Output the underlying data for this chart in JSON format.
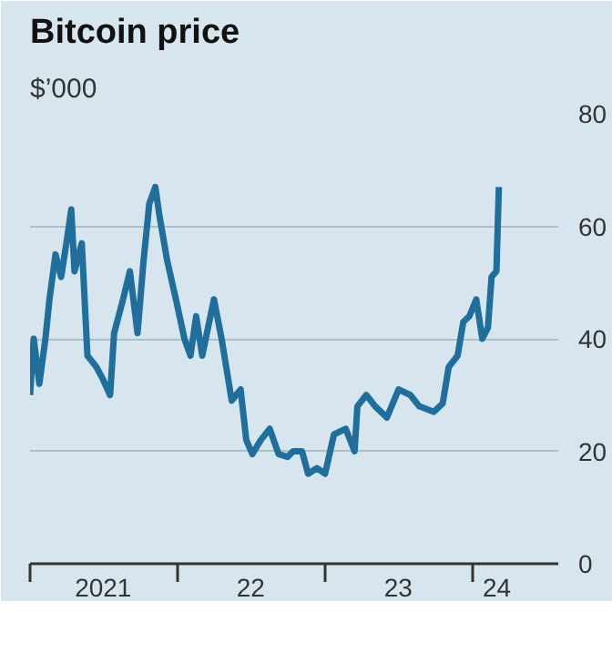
{
  "chart_data": {
    "type": "line",
    "title": "Bitcoin price",
    "subtitle": "$’000",
    "x": [
      "2021-01-01",
      "2021-01-10",
      "2021-01-24",
      "2021-02-08",
      "2021-02-18",
      "2021-03-05",
      "2021-03-19",
      "2021-04-03",
      "2021-04-13",
      "2021-04-21",
      "2021-05-09",
      "2021-05-23",
      "2021-06-14",
      "2021-06-29",
      "2021-07-18",
      "2021-07-28",
      "2021-08-19",
      "2021-09-05",
      "2021-09-24",
      "2021-10-09",
      "2021-10-23",
      "2021-11-07",
      "2021-11-17",
      "2021-12-06",
      "2021-12-28",
      "2022-01-18",
      "2022-02-02",
      "2022-02-16",
      "2022-03-03",
      "2022-04-01",
      "2022-04-20",
      "2022-05-15",
      "2022-06-06",
      "2022-06-20",
      "2022-07-05",
      "2022-07-26",
      "2022-08-17",
      "2022-09-08",
      "2022-09-30",
      "2022-10-14",
      "2022-11-05",
      "2022-11-20",
      "2022-12-12",
      "2023-01-01",
      "2023-01-23",
      "2023-02-21",
      "2023-03-15",
      "2023-03-22",
      "2023-04-13",
      "2023-05-05",
      "2023-06-03",
      "2023-07-02",
      "2023-07-31",
      "2023-08-22",
      "2023-09-27",
      "2023-10-19",
      "2023-11-03",
      "2023-11-25",
      "2023-12-09",
      "2023-12-24",
      "2024-01-10",
      "2024-01-25",
      "2024-02-08",
      "2024-02-17",
      "2024-02-29",
      "2024-03-06"
    ],
    "series": [
      {
        "color": "#1f6e9c",
        "values": [
          30,
          40,
          32,
          40,
          47,
          55,
          51,
          58,
          63,
          52,
          57,
          37,
          35,
          33,
          30,
          41,
          47,
          52,
          41,
          54,
          64,
          67,
          62,
          54,
          47,
          40,
          37,
          44,
          37,
          47,
          40,
          29,
          31,
          22,
          19.5,
          22,
          24,
          19.5,
          19,
          20,
          20,
          16,
          17,
          16,
          23,
          24,
          20,
          28,
          30,
          28,
          26,
          31,
          30,
          28,
          27,
          28.5,
          35,
          37,
          43,
          44,
          47,
          40,
          42,
          51,
          52,
          67
        ]
      }
    ],
    "xlim": [
      "2021-01-01",
      "2024-07-31"
    ],
    "xticks": [
      {
        "value": "2021-01-01",
        "label": null
      },
      {
        "value": "2021-07-01",
        "label": "2021"
      },
      {
        "value": "2022-01-01",
        "label": null
      },
      {
        "value": "2022-07-01",
        "label": "22"
      },
      {
        "value": "2023-01-01",
        "label": null
      },
      {
        "value": "2023-07-01",
        "label": "23"
      },
      {
        "value": "2024-01-01",
        "label": null
      },
      {
        "value": "2024-03-01",
        "label": "24"
      }
    ],
    "ylim": [
      0,
      80
    ],
    "yticks": [
      0,
      20,
      40,
      60,
      80
    ],
    "grid": "y",
    "marker": "none",
    "line_style": "solid"
  }
}
